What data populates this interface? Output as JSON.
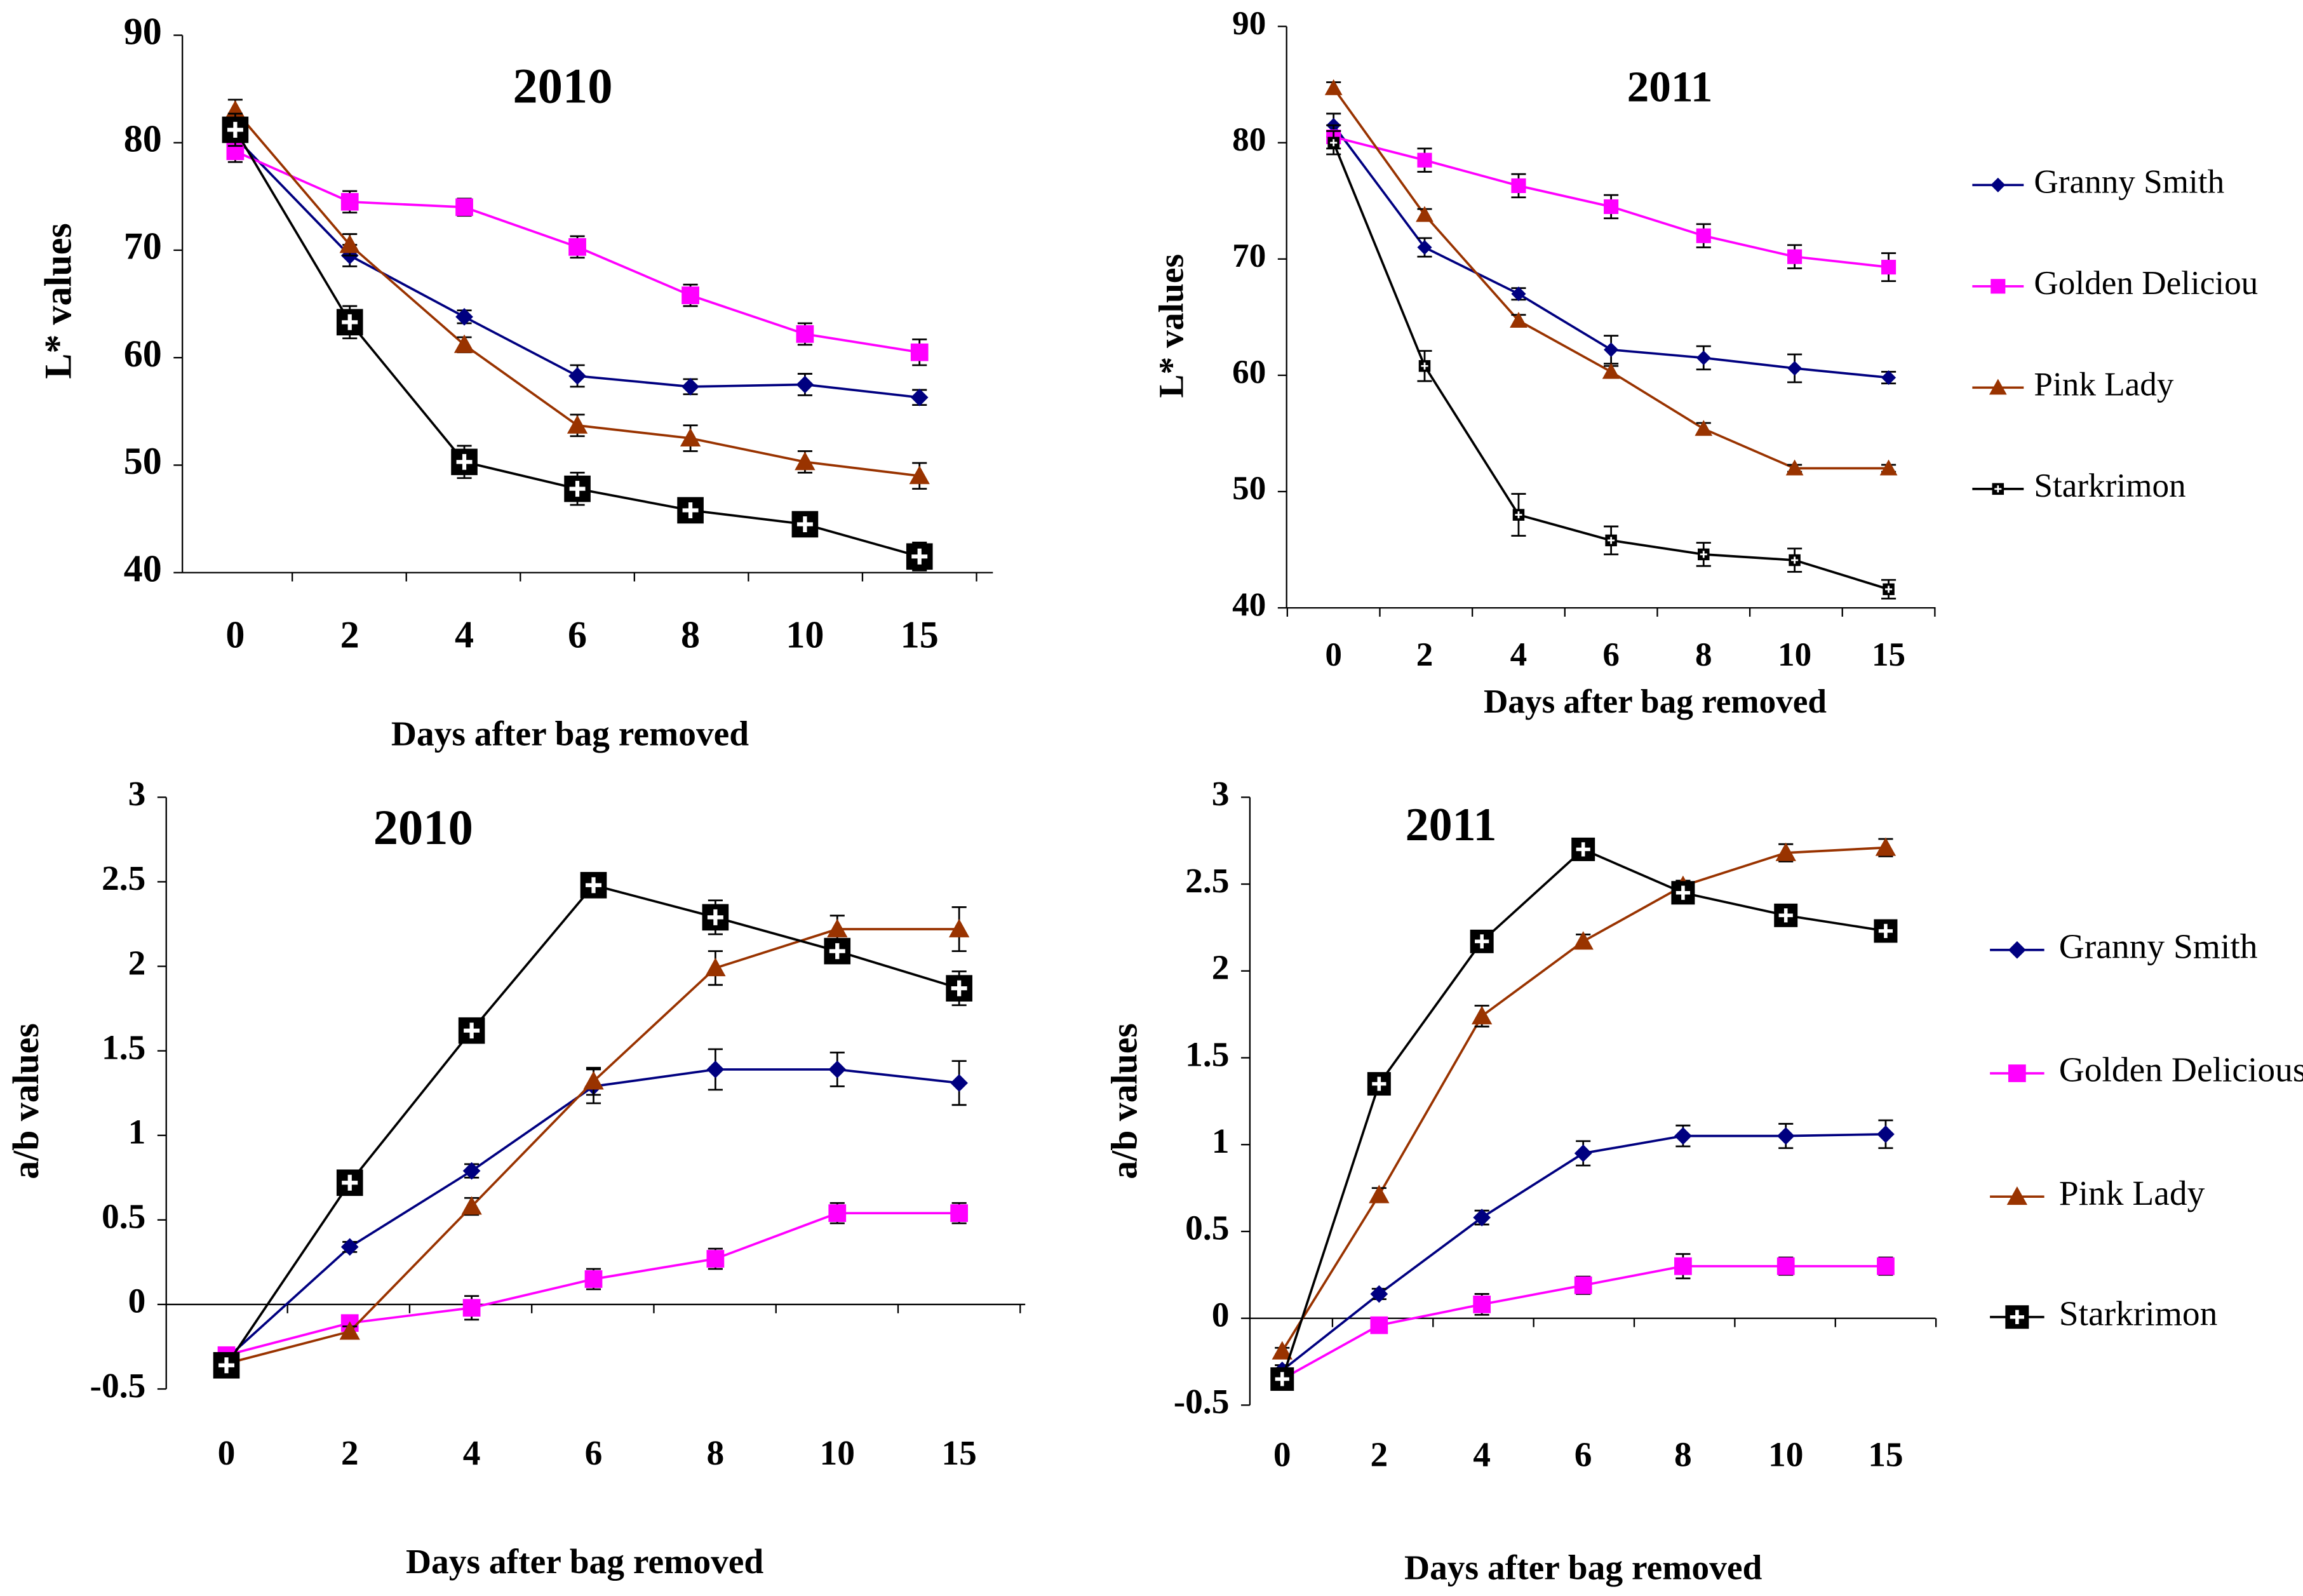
{
  "chart_data": [
    {
      "type": "line",
      "title": "2010",
      "ylabel": "L* values",
      "xlabel": "Days after bag removed",
      "categories": [
        "0",
        "2",
        "4",
        "6",
        "8",
        "10",
        "15"
      ],
      "ylim": [
        40,
        90
      ],
      "yticks": [
        40,
        50,
        60,
        70,
        80,
        90
      ],
      "series": [
        {
          "color": "#000080",
          "marker": "diamond",
          "values": [
            80.5,
            69.5,
            63.8,
            58.3,
            57.3,
            57.5,
            56.3
          ],
          "errors": [
            1,
            1,
            0.6,
            1,
            0.7,
            1,
            0.7
          ]
        },
        {
          "color": "#ff00ff",
          "marker": "square",
          "values": [
            79.2,
            74.5,
            74,
            70.3,
            65.8,
            62.2,
            60.5
          ],
          "errors": [
            1,
            1,
            0.8,
            1,
            1,
            1,
            1.2
          ]
        },
        {
          "color": "#993300",
          "marker": "triangle",
          "values": [
            83,
            70.5,
            61.2,
            53.7,
            52.5,
            50.3,
            49
          ],
          "errors": [
            1,
            1,
            0.7,
            1,
            1.2,
            1,
            1.2
          ]
        },
        {
          "color": "#000000",
          "marker": "plus-square",
          "values": [
            81.2,
            63.3,
            50.3,
            47.8,
            45.8,
            44.5,
            41.5
          ],
          "errors": [
            1.5,
            1.5,
            1.5,
            1.5,
            0.8,
            1,
            1.3
          ]
        }
      ]
    },
    {
      "type": "line",
      "title": "2011",
      "ylabel": "L* values",
      "xlabel": "Days after bag removed",
      "categories": [
        "0",
        "2",
        "4",
        "6",
        "8",
        "10",
        "15"
      ],
      "ylim": [
        40,
        90
      ],
      "yticks": [
        40,
        50,
        60,
        70,
        80,
        90
      ],
      "series": [
        {
          "name": "Granny Smith",
          "color": "#000080",
          "marker": "diamond",
          "values": [
            81.5,
            71,
            67,
            62.2,
            61.5,
            60.6,
            59.8
          ],
          "errors": [
            1,
            0.8,
            0.5,
            1.2,
            1,
            1.2,
            0.5
          ]
        },
        {
          "name": "Golden Deliciou",
          "color": "#ff00ff",
          "marker": "square",
          "values": [
            80.5,
            78.5,
            76.3,
            74.5,
            72,
            70.2,
            69.3
          ],
          "errors": [
            1,
            1,
            1,
            1,
            1,
            1,
            1.2
          ]
        },
        {
          "name": "Pink Lady",
          "color": "#993300",
          "marker": "triangle",
          "values": [
            84.7,
            73.8,
            64.7,
            60.3,
            55.4,
            52,
            52
          ],
          "errors": [
            0.5,
            0.5,
            0.5,
            0.5,
            0.5,
            0.3,
            0.3
          ]
        },
        {
          "name": "Starkrimon",
          "color": "#000000",
          "marker": "plus-square",
          "values": [
            80,
            60.8,
            48,
            45.8,
            44.6,
            44.1,
            41.6
          ],
          "errors": [
            1,
            1.3,
            1.8,
            1.2,
            1,
            1,
            0.8
          ]
        }
      ]
    },
    {
      "type": "line",
      "title": "2010",
      "ylabel": "a/b values",
      "xlabel": "Days after bag removed",
      "categories": [
        "0",
        "2",
        "4",
        "6",
        "8",
        "10",
        "15"
      ],
      "ylim": [
        -0.5,
        3
      ],
      "yticks": [
        -0.5,
        0,
        0.5,
        1,
        1.5,
        2,
        2.5,
        3
      ],
      "series": [
        {
          "color": "#000080",
          "marker": "diamond",
          "values": [
            -0.32,
            0.34,
            0.79,
            1.29,
            1.39,
            1.39,
            1.31
          ],
          "errors": [
            0.03,
            0.03,
            0.04,
            0.1,
            0.12,
            0.1,
            0.13
          ]
        },
        {
          "color": "#ff00ff",
          "marker": "square",
          "values": [
            -0.3,
            -0.11,
            -0.02,
            0.15,
            0.27,
            0.54,
            0.54
          ],
          "errors": [
            0.03,
            0.03,
            0.07,
            0.06,
            0.06,
            0.06,
            0.06
          ]
        },
        {
          "color": "#993300",
          "marker": "triangle",
          "values": [
            -0.35,
            -0.16,
            0.58,
            1.32,
            1.99,
            2.22,
            2.22
          ],
          "errors": [
            0.02,
            0.03,
            0.05,
            0.08,
            0.1,
            0.08,
            0.13
          ]
        },
        {
          "color": "#000000",
          "marker": "plus-square",
          "values": [
            -0.36,
            0.72,
            1.62,
            2.48,
            2.29,
            2.09,
            1.87
          ],
          "errors": [
            0.04,
            0.04,
            0.04,
            0.04,
            0.1,
            0.07,
            0.1
          ]
        }
      ]
    },
    {
      "type": "line",
      "title": "2011",
      "ylabel": "a/b values",
      "xlabel": "Days after bag removed",
      "categories": [
        "0",
        "2",
        "4",
        "6",
        "8",
        "10",
        "15"
      ],
      "ylim": [
        -0.5,
        3
      ],
      "yticks": [
        -0.5,
        0,
        0.5,
        1,
        1.5,
        2,
        2.5,
        3
      ],
      "series": [
        {
          "name": "Granny Smith",
          "color": "#000080",
          "marker": "diamond",
          "values": [
            -0.3,
            0.14,
            0.58,
            0.95,
            1.05,
            1.05,
            1.06
          ],
          "errors": [
            0.03,
            0.03,
            0.04,
            0.07,
            0.06,
            0.07,
            0.08
          ]
        },
        {
          "name": "Golden Delicious",
          "color": "#ff00ff",
          "marker": "square",
          "values": [
            -0.35,
            -0.04,
            0.08,
            0.19,
            0.3,
            0.3,
            0.3
          ],
          "errors": [
            0.02,
            0.02,
            0.06,
            0.05,
            0.07,
            0.05,
            0.05
          ]
        },
        {
          "name": "Pink Lady",
          "color": "#993300",
          "marker": "triangle",
          "values": [
            -0.19,
            0.71,
            1.74,
            2.17,
            2.49,
            2.68,
            2.71
          ],
          "errors": [
            0.02,
            0.04,
            0.06,
            0.04,
            0.03,
            0.05,
            0.05
          ]
        },
        {
          "name": "Starkrimon",
          "color": "#000000",
          "marker": "plus-square",
          "values": [
            -0.35,
            1.35,
            2.17,
            2.7,
            2.45,
            2.32,
            2.23
          ],
          "errors": [
            0.03,
            0.03,
            0.03,
            0.03,
            0.03,
            0.03,
            0.03
          ]
        }
      ]
    }
  ]
}
